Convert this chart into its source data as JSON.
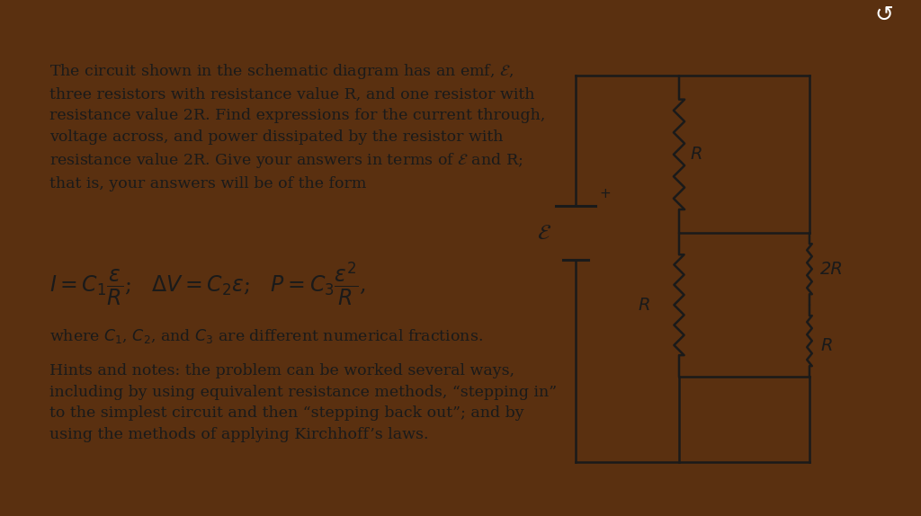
{
  "bg_top_color": "#5a3010",
  "bg_main_color": "#d8dde5",
  "text_color": "#1a1a1a",
  "line_color": "#1a1a1a",
  "title_fontsize": 13.5,
  "body_fontsize": 13.5,
  "equation_fontsize": 18,
  "paragraph1": "The circuit shown in the schematic diagram has an emf, ε,\nthree resistors with resistance value R, and one resistor with\nresistance value 2R. Find expressions for the current through,\nvoltage across, and power dissipated by the resistor with\nresistance value 2R. Give your answers in terms of ε and R;\nthat is, your answers will be of the form",
  "paragraph2": "where C₁, C₂, and C₃ are different numerical fractions.",
  "paragraph3": "Hints and notes: the problem can be worked several ways,\nincluding by using equivalent resistance methods, “stepping in”\nto the simplest circuit and then “stepping back out”; and by\nusing the methods of applying Kirchhoff’s laws.",
  "icon_color": "#1a1a1a",
  "top_bar_height": 0.06
}
